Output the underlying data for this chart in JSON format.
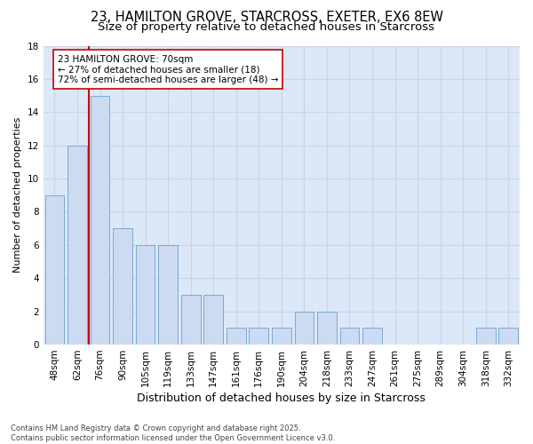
{
  "title": "23, HAMILTON GROVE, STARCROSS, EXETER, EX6 8EW",
  "subtitle": "Size of property relative to detached houses in Starcross",
  "xlabel": "Distribution of detached houses by size in Starcross",
  "ylabel": "Number of detached properties",
  "categories": [
    "48sqm",
    "62sqm",
    "76sqm",
    "90sqm",
    "105sqm",
    "119sqm",
    "133sqm",
    "147sqm",
    "161sqm",
    "176sqm",
    "190sqm",
    "204sqm",
    "218sqm",
    "233sqm",
    "247sqm",
    "261sqm",
    "275sqm",
    "289sqm",
    "304sqm",
    "318sqm",
    "332sqm"
  ],
  "values": [
    9,
    12,
    15,
    7,
    6,
    6,
    3,
    3,
    1,
    1,
    1,
    2,
    2,
    1,
    1,
    0,
    0,
    0,
    0,
    1,
    1
  ],
  "bar_color": "#ccdaf2",
  "bar_edge_color": "#7baad4",
  "vline_color": "#cc0000",
  "vline_x": 1.5,
  "annotation_text": "23 HAMILTON GROVE: 70sqm\n← 27% of detached houses are smaller (18)\n72% of semi-detached houses are larger (48) →",
  "annotation_box_facecolor": "#ffffff",
  "annotation_box_edgecolor": "#cc0000",
  "grid_color": "#c8d4e8",
  "background_color": "#dce8f8",
  "ylim": [
    0,
    18
  ],
  "yticks": [
    0,
    2,
    4,
    6,
    8,
    10,
    12,
    14,
    16,
    18
  ],
  "footer": "Contains HM Land Registry data © Crown copyright and database right 2025.\nContains public sector information licensed under the Open Government Licence v3.0.",
  "title_fontsize": 10.5,
  "subtitle_fontsize": 9.5,
  "ylabel_fontsize": 8,
  "xlabel_fontsize": 9,
  "tick_fontsize": 7.5,
  "annotation_fontsize": 7.5,
  "footer_fontsize": 6
}
